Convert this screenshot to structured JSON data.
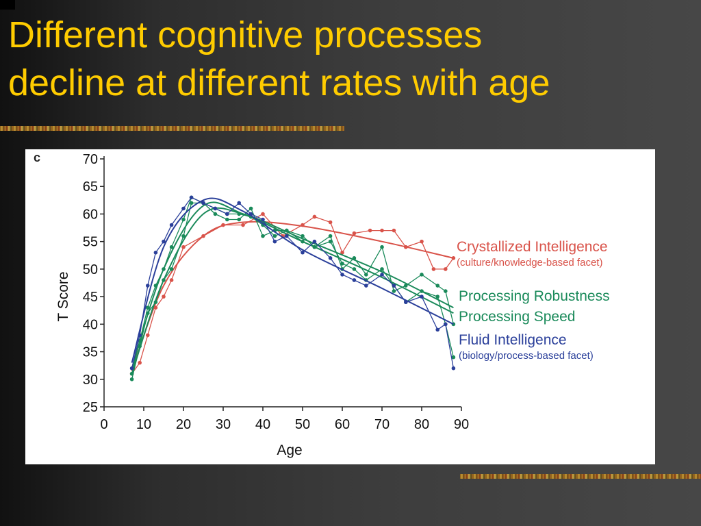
{
  "slide": {
    "title_lines": [
      "Different cognitive processes",
      "decline at different rates with age"
    ],
    "colors": {
      "title": "#ffcc00",
      "background": "#3d3d3d",
      "panel": "#ffffff"
    }
  },
  "chart_data": {
    "type": "line",
    "panel_label": "c",
    "xlabel": "Age",
    "ylabel": "T Score",
    "xlim": [
      0,
      90
    ],
    "ylim": [
      25,
      70
    ],
    "xticks": [
      "0",
      "10",
      "20",
      "30",
      "40",
      "50",
      "60",
      "70",
      "80",
      "90"
    ],
    "yticks": [
      "25",
      "30",
      "35",
      "40",
      "45",
      "50",
      "55",
      "60",
      "65",
      "70"
    ],
    "grid": false,
    "legend_placement": "right",
    "series": [
      {
        "name": "Crystallized Intelligence",
        "subtitle": "(culture/knowledge-based facet)",
        "color": "#d9534a",
        "x": [
          7,
          9,
          11,
          13,
          15,
          17,
          20,
          25,
          30,
          35,
          40,
          45,
          50,
          53,
          57,
          60,
          63,
          67,
          70,
          73,
          76,
          80,
          83,
          86,
          88
        ],
        "y": [
          31,
          33,
          38,
          43,
          45,
          48,
          54,
          56,
          58,
          58,
          60,
          56,
          58,
          59.5,
          58.5,
          53,
          56.5,
          57,
          57,
          57,
          54,
          55,
          50,
          50,
          52
        ],
        "fit": [
          [
            7,
            31.5
          ],
          [
            15,
            47
          ],
          [
            25,
            56
          ],
          [
            35,
            58.5
          ],
          [
            50,
            57.8
          ],
          [
            70,
            55
          ],
          [
            88,
            52
          ]
        ]
      },
      {
        "name": "Processing Robustness",
        "color": "#1a8a5a",
        "x": [
          7,
          9,
          11,
          13,
          15,
          17,
          20,
          22,
          25,
          28,
          31,
          34,
          37,
          40,
          43,
          46,
          50,
          53,
          57,
          60,
          63,
          66,
          70,
          73,
          76,
          80,
          84,
          86,
          88
        ],
        "y": [
          30,
          36,
          42,
          44,
          48,
          50,
          56,
          62,
          62,
          60,
          59,
          59,
          61,
          56,
          57,
          57,
          56,
          54,
          56,
          50,
          52,
          49,
          54,
          46,
          47,
          49,
          47,
          46,
          40
        ],
        "fit": [
          [
            7,
            31
          ],
          [
            15,
            48
          ],
          [
            25,
            60
          ],
          [
            35,
            60
          ],
          [
            50,
            55.5
          ],
          [
            70,
            49.5
          ],
          [
            88,
            43
          ]
        ]
      },
      {
        "name": "Processing Speed",
        "color": "#1a8a5a",
        "x": [
          7,
          9,
          11,
          13,
          15,
          17,
          20,
          22,
          25,
          28,
          31,
          34,
          37,
          40,
          43,
          46,
          50,
          53,
          57,
          60,
          63,
          66,
          70,
          73,
          76,
          80,
          84,
          86,
          88
        ],
        "y": [
          31,
          37,
          43,
          47,
          50,
          54,
          59,
          63,
          62,
          61,
          60,
          60,
          59.5,
          58,
          56,
          57,
          55,
          54,
          55,
          51,
          50,
          48,
          50,
          47,
          44,
          46,
          45,
          40,
          34
        ],
        "fit": [
          [
            7,
            32
          ],
          [
            15,
            50
          ],
          [
            25,
            61.5
          ],
          [
            35,
            60
          ],
          [
            50,
            55
          ],
          [
            70,
            48.5
          ],
          [
            88,
            42
          ]
        ]
      },
      {
        "name": "Fluid Intelligence",
        "subtitle": "(biology/process-based facet)",
        "color": "#2a3f9a",
        "x": [
          7,
          9,
          11,
          13,
          15,
          17,
          20,
          22,
          25,
          28,
          31,
          34,
          37,
          40,
          43,
          46,
          50,
          53,
          57,
          60,
          63,
          66,
          70,
          73,
          76,
          80,
          84,
          86,
          88
        ],
        "y": [
          32,
          38,
          47,
          53,
          55,
          58,
          61,
          63,
          62,
          61,
          60,
          62,
          60,
          59,
          55,
          56,
          53,
          55,
          52,
          49,
          48,
          47,
          49,
          47,
          44,
          45,
          39,
          40,
          32
        ],
        "fit": [
          [
            7,
            33
          ],
          [
            15,
            54
          ],
          [
            25,
            62.5
          ],
          [
            35,
            60.5
          ],
          [
            50,
            53.5
          ],
          [
            70,
            46.5
          ],
          [
            88,
            40
          ]
        ]
      }
    ]
  }
}
